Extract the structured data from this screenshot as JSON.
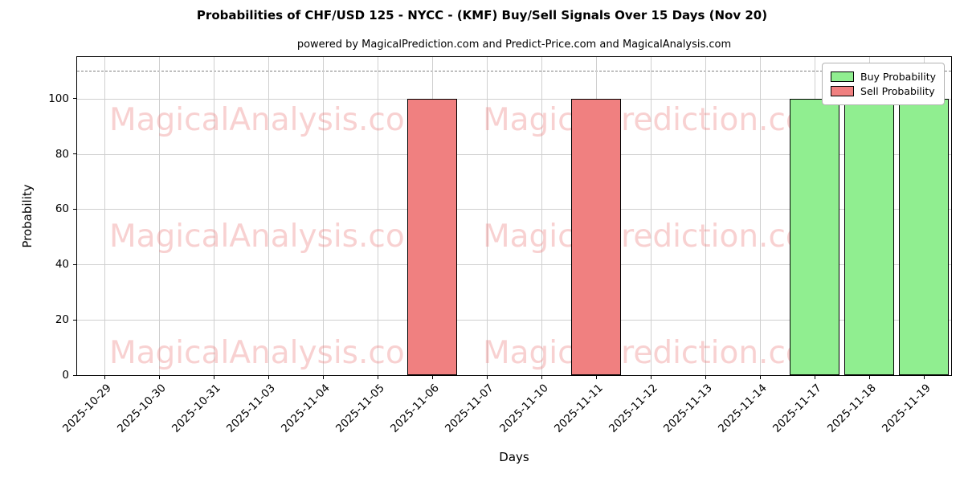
{
  "title": "Probabilities of CHF/USD 125 - NYCC -  (KMF) Buy/Sell Signals Over 15 Days (Nov 20)",
  "subtitle": "powered by MagicalPrediction.com and Predict-Price.com and MagicalAnalysis.com",
  "watermarks": {
    "left": "MagicalAnalysis.com",
    "right": "MagicalPrediction.com"
  },
  "chart_data": {
    "type": "bar",
    "title": "Probabilities of CHF/USD 125 - NYCC -  (KMF) Buy/Sell Signals Over 15 Days (Nov 20)",
    "xlabel": "Days",
    "ylabel": "Probability",
    "categories": [
      "2025-10-29",
      "2025-10-30",
      "2025-10-31",
      "2025-11-03",
      "2025-11-04",
      "2025-11-05",
      "2025-11-06",
      "2025-11-07",
      "2025-11-10",
      "2025-11-11",
      "2025-11-12",
      "2025-11-13",
      "2025-11-14",
      "2025-11-17",
      "2025-11-18",
      "2025-11-19"
    ],
    "series": [
      {
        "name": "Buy Probability",
        "color": "#90ee90",
        "values": [
          0,
          0,
          0,
          0,
          0,
          0,
          0,
          0,
          0,
          0,
          0,
          0,
          0,
          100,
          100,
          100
        ]
      },
      {
        "name": "Sell Probability",
        "color": "#f08080",
        "values": [
          0,
          0,
          0,
          0,
          0,
          0,
          100,
          0,
          0,
          100,
          0,
          0,
          0,
          0,
          0,
          0
        ]
      }
    ],
    "yticks": [
      0,
      20,
      40,
      60,
      80,
      100
    ],
    "ylim": [
      0,
      115
    ],
    "dashed_line_y": 110,
    "grid": true,
    "legend_position": "upper right",
    "bar_width_fraction": 0.9,
    "colors": {
      "grid": "#cfcfcf",
      "dashed_line": "#808080",
      "bar_edge": "#000000",
      "watermark": "rgba(233,115,115,0.33)",
      "axis": "#000000"
    }
  }
}
